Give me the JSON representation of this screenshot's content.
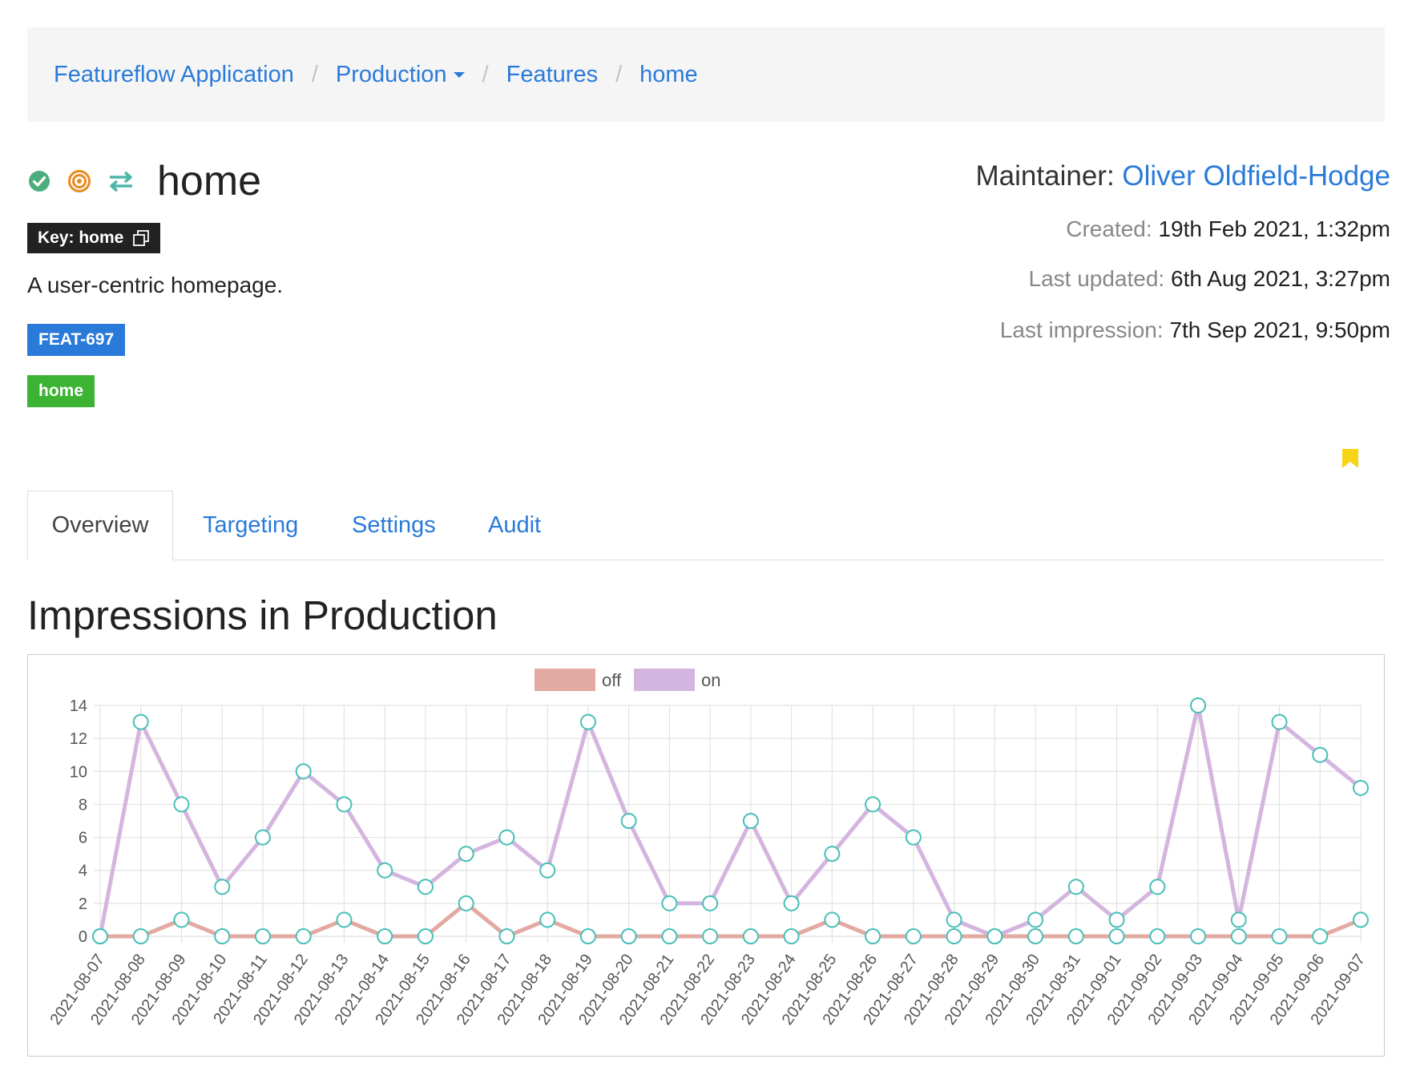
{
  "breadcrumb": {
    "items": [
      {
        "label": "Featureflow Application"
      },
      {
        "label": "Production"
      },
      {
        "label": "Features"
      },
      {
        "label": "home"
      }
    ]
  },
  "feature": {
    "title": "home",
    "key_label": "Key: home",
    "description": "A user-centric homepage.",
    "labels": [
      "FEAT-697",
      "home"
    ]
  },
  "meta": {
    "maintainer_label": "Maintainer:",
    "maintainer_name": "Oliver Oldfield-Hodge",
    "created_label": "Created:",
    "created_value": "19th Feb 2021, 1:32pm",
    "updated_label": "Last updated:",
    "updated_value": "6th Aug 2021, 3:27pm",
    "impression_label": "Last impression:",
    "impression_value": "7th Sep 2021, 9:50pm"
  },
  "tabs": [
    "Overview",
    "Targeting",
    "Settings",
    "Audit"
  ],
  "section_title": "Impressions in Production",
  "colors": {
    "off": "#e2aaa2",
    "on": "#d4b5df",
    "point_stroke": "#47bfb7",
    "accent": "#2a7ad9"
  },
  "chart_data": {
    "type": "line",
    "title": "",
    "xlabel": "",
    "ylabel": "",
    "ylim": [
      0,
      14
    ],
    "yticks": [
      0,
      2,
      4,
      6,
      8,
      10,
      12,
      14
    ],
    "grid": true,
    "legend_position": "top-center",
    "x": [
      "2021-08-07",
      "2021-08-08",
      "2021-08-09",
      "2021-08-10",
      "2021-08-11",
      "2021-08-12",
      "2021-08-13",
      "2021-08-14",
      "2021-08-15",
      "2021-08-16",
      "2021-08-17",
      "2021-08-18",
      "2021-08-19",
      "2021-08-20",
      "2021-08-21",
      "2021-08-22",
      "2021-08-23",
      "2021-08-24",
      "2021-08-25",
      "2021-08-26",
      "2021-08-27",
      "2021-08-28",
      "2021-08-29",
      "2021-08-30",
      "2021-08-31",
      "2021-09-01",
      "2021-09-02",
      "2021-09-03",
      "2021-09-04",
      "2021-09-05",
      "2021-09-06",
      "2021-09-07"
    ],
    "series": [
      {
        "name": "off",
        "values": [
          0,
          0,
          1,
          0,
          0,
          0,
          1,
          0,
          0,
          2,
          0,
          1,
          0,
          0,
          0,
          0,
          0,
          0,
          1,
          0,
          0,
          0,
          0,
          0,
          0,
          0,
          0,
          0,
          0,
          0,
          0,
          1
        ]
      },
      {
        "name": "on",
        "values": [
          0,
          13,
          8,
          3,
          6,
          10,
          8,
          4,
          3,
          5,
          6,
          4,
          13,
          7,
          2,
          2,
          7,
          2,
          5,
          8,
          6,
          1,
          0,
          1,
          3,
          1,
          3,
          14,
          1,
          13,
          11,
          9
        ]
      }
    ]
  }
}
